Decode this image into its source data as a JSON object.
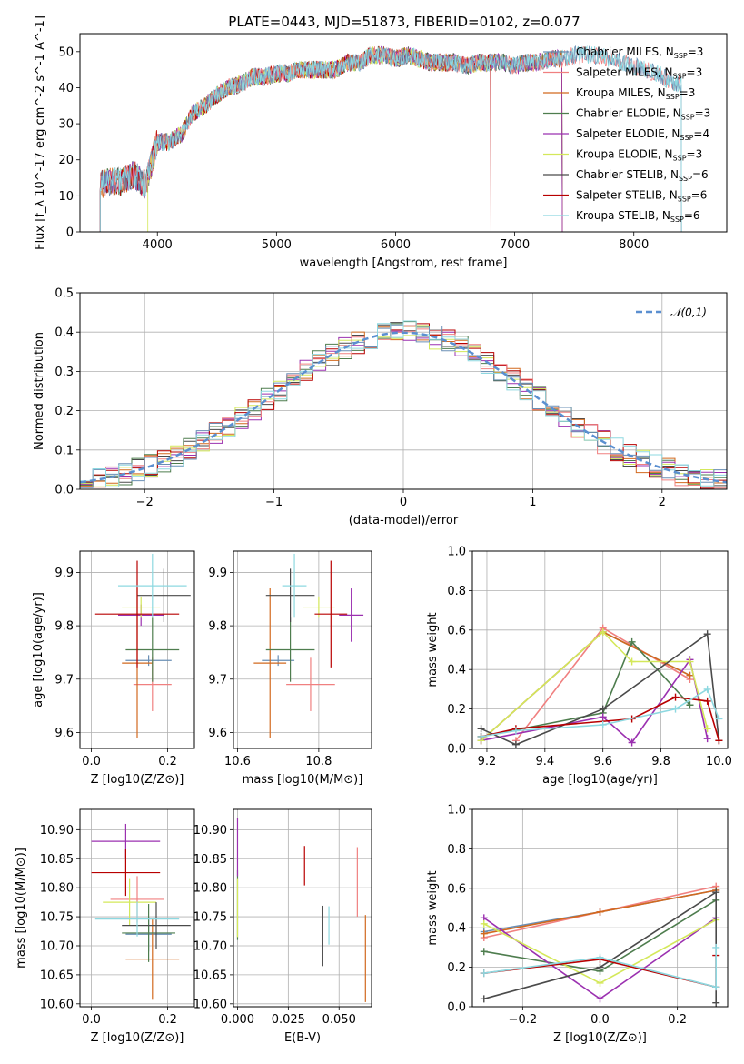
{
  "figure": {
    "title": "PLATE=0443, MJD=51873, FIBERID=0102, z=0.077",
    "background": "#ffffff"
  },
  "series_info": [
    {
      "name": "Chabrier MILES",
      "nssp": "3",
      "color": "#6a8fb5"
    },
    {
      "name": "Salpeter MILES",
      "nssp": "3",
      "color": "#f08080"
    },
    {
      "name": "Kroupa MILES",
      "nssp": "3",
      "color": "#d2691e"
    },
    {
      "name": "Chabrier ELODIE",
      "nssp": "3",
      "color": "#4e7d4e"
    },
    {
      "name": "Salpeter ELODIE",
      "nssp": "4",
      "color": "#9b30b0"
    },
    {
      "name": "Kroupa ELODIE",
      "nssp": "3",
      "color": "#d4e85a"
    },
    {
      "name": "Chabrier STELIB",
      "nssp": "6",
      "color": "#4a4a4a"
    },
    {
      "name": "Salpeter STELIB",
      "nssp": "6",
      "color": "#b80000"
    },
    {
      "name": "Kroupa STELIB",
      "nssp": "6",
      "color": "#8dd8e0"
    }
  ],
  "chart_data": [
    {
      "id": "spectrum",
      "type": "line",
      "xlabel": "wavelength [Angstrom, rest frame]",
      "ylabel": "Flux [f_λ 10^-17 erg cm^-2 s^-1 A^-1]",
      "xlim": [
        3350,
        8780
      ],
      "ylim": [
        0,
        55
      ],
      "xticks": [
        4000,
        5000,
        6000,
        7000,
        8000
      ],
      "yticks": [
        0,
        10,
        20,
        30,
        40,
        50
      ],
      "grid": false,
      "legend": "upper right",
      "data_x": [
        3520,
        3600,
        3700,
        3800,
        3900,
        4000,
        4100,
        4200,
        4300,
        4400,
        4500,
        4600,
        4700,
        4800,
        4900,
        5000,
        5100,
        5200,
        5300,
        5400,
        5500,
        5600,
        5700,
        5800,
        5900,
        6000,
        6100,
        6200,
        6300,
        6400,
        6500,
        6600,
        6700,
        6800,
        6900,
        7000,
        7100,
        7200,
        7300,
        7400,
        7500,
        7600,
        7700,
        7800,
        7900,
        8000,
        8100,
        8200,
        8300,
        8400
      ],
      "data_y": [
        13,
        14,
        14,
        16,
        13,
        25,
        25,
        27,
        33,
        35,
        38,
        40,
        41,
        43,
        43,
        44,
        44,
        45,
        45,
        45,
        45,
        47,
        47,
        49,
        49,
        48,
        49,
        48,
        47,
        47,
        47,
        46,
        47,
        47,
        47,
        46,
        47,
        47,
        48,
        48,
        49,
        49,
        49,
        48,
        47,
        46,
        45,
        44,
        42,
        41
      ],
      "model_ranges": [
        {
          "series": 0,
          "x": [
            3520,
            8400
          ]
        },
        {
          "series": 1,
          "x": [
            3520,
            8400
          ]
        },
        {
          "series": 2,
          "x": [
            3520,
            7400
          ]
        },
        {
          "series": 3,
          "x": [
            3520,
            7400
          ]
        },
        {
          "series": 4,
          "x": [
            3520,
            7400
          ]
        },
        {
          "series": 5,
          "x": [
            3920,
            6800
          ]
        },
        {
          "series": 6,
          "x": [
            3520,
            7400
          ]
        },
        {
          "series": 7,
          "x": [
            3520,
            6800
          ]
        },
        {
          "series": 8,
          "x": [
            3520,
            8400
          ]
        }
      ]
    },
    {
      "id": "residuals",
      "type": "line",
      "xlabel": "(data-model)/error",
      "ylabel": "Normed distribution",
      "xlim": [
        -2.5,
        2.5
      ],
      "ylim": [
        0,
        0.5
      ],
      "xticks": [
        -2,
        -1,
        0,
        1,
        2
      ],
      "yticks": [
        0.0,
        0.1,
        0.2,
        0.3,
        0.4,
        0.5
      ],
      "grid": true,
      "legend": "upper right",
      "reference_label": "𝒩(0,1)",
      "reference_color": "#5b8fd0",
      "bin_edges_start": -2.5,
      "bin_width": 0.1
    },
    {
      "id": "age-vs-Z",
      "type": "scatter",
      "xlabel": "Z [log10(Z/Z⊙)]",
      "ylabel": "age [log10(age/yr)]",
      "xlim": [
        -0.03,
        0.27
      ],
      "ylim": [
        9.57,
        9.94
      ],
      "xticks": [
        0.0,
        0.2
      ],
      "yticks": [
        9.6,
        9.7,
        9.8,
        9.9
      ],
      "grid": true,
      "points": [
        {
          "s": 0,
          "x": 0.15,
          "y": 9.735,
          "xe": 0.06,
          "ye": 0.01
        },
        {
          "s": 1,
          "x": 0.16,
          "y": 9.69,
          "xe": 0.05,
          "ye": 0.05
        },
        {
          "s": 2,
          "x": 0.12,
          "y": 9.73,
          "xe": 0.04,
          "ye": 0.14
        },
        {
          "s": 3,
          "x": 0.16,
          "y": 9.755,
          "xe": 0.07,
          "ye": 0.06
        },
        {
          "s": 4,
          "x": 0.13,
          "y": 9.82,
          "xe": 0.06,
          "ye": 0.02
        },
        {
          "s": 5,
          "x": 0.13,
          "y": 9.835,
          "xe": 0.05,
          "ye": 0.02
        },
        {
          "s": 6,
          "x": 0.19,
          "y": 9.857,
          "xe": 0.07,
          "ye": 0.05
        },
        {
          "s": 7,
          "x": 0.12,
          "y": 9.822,
          "xe": 0.11,
          "ye": 0.1
        },
        {
          "s": 8,
          "x": 0.16,
          "y": 9.875,
          "xe": 0.09,
          "ye": 0.06
        }
      ]
    },
    {
      "id": "age-vs-mass",
      "type": "scatter",
      "xlabel": "mass [log10(M/M⊙)]",
      "ylabel": "",
      "xlim": [
        10.59,
        10.93
      ],
      "ylim": [
        9.57,
        9.94
      ],
      "xticks": [
        10.6,
        10.8
      ],
      "yticks": [
        9.6,
        9.7,
        9.8,
        9.9
      ],
      "grid": true,
      "points": [
        {
          "s": 0,
          "x": 10.7,
          "y": 9.735,
          "xe": 0.04,
          "ye": 0.01
        },
        {
          "s": 1,
          "x": 10.78,
          "y": 9.69,
          "xe": 0.06,
          "ye": 0.05
        },
        {
          "s": 2,
          "x": 10.68,
          "y": 9.73,
          "xe": 0.04,
          "ye": 0.14
        },
        {
          "s": 3,
          "x": 10.73,
          "y": 9.755,
          "xe": 0.06,
          "ye": 0.06
        },
        {
          "s": 4,
          "x": 10.88,
          "y": 9.82,
          "xe": 0.03,
          "ye": 0.05
        },
        {
          "s": 5,
          "x": 10.8,
          "y": 9.835,
          "xe": 0.04,
          "ye": 0.02
        },
        {
          "s": 6,
          "x": 10.73,
          "y": 9.857,
          "xe": 0.06,
          "ye": 0.05
        },
        {
          "s": 7,
          "x": 10.83,
          "y": 9.822,
          "xe": 0.04,
          "ye": 0.1
        },
        {
          "s": 8,
          "x": 10.74,
          "y": 9.875,
          "xe": 0.03,
          "ye": 0.06
        }
      ]
    },
    {
      "id": "mass-weight-vs-age",
      "type": "line",
      "xlabel": "age [log10(age/yr)]",
      "ylabel": "mass weight",
      "xlim": [
        9.15,
        10.03
      ],
      "ylim": [
        0,
        1
      ],
      "xticks": [
        9.2,
        9.4,
        9.6,
        9.8,
        10.0
      ],
      "yticks": [
        0.0,
        0.2,
        0.4,
        0.6,
        0.8,
        1.0
      ],
      "grid": true,
      "lines": [
        {
          "s": 0,
          "x": [
            9.18,
            9.6,
            9.9
          ],
          "y": [
            0.04,
            0.59,
            0.37
          ]
        },
        {
          "s": 1,
          "x": [
            9.3,
            9.6,
            9.9
          ],
          "y": [
            0.04,
            0.61,
            0.35
          ]
        },
        {
          "s": 2,
          "x": [
            9.18,
            9.6,
            9.9
          ],
          "y": [
            0.04,
            0.59,
            0.37
          ]
        },
        {
          "s": 3,
          "x": [
            9.18,
            9.6,
            9.7,
            9.9
          ],
          "y": [
            0.06,
            0.18,
            0.54,
            0.22
          ]
        },
        {
          "s": 4,
          "x": [
            9.18,
            9.6,
            9.7,
            9.9,
            9.96
          ],
          "y": [
            0.04,
            0.16,
            0.03,
            0.45,
            0.05
          ]
        },
        {
          "s": 5,
          "x": [
            9.18,
            9.6,
            9.7,
            9.9,
            9.96
          ],
          "y": [
            0.04,
            0.59,
            0.44,
            0.44,
            0.1
          ]
        },
        {
          "s": 6,
          "x": [
            9.18,
            9.3,
            9.6,
            9.96,
            10.0
          ],
          "y": [
            0.1,
            0.02,
            0.2,
            0.58,
            0.04
          ]
        },
        {
          "s": 7,
          "x": [
            9.18,
            9.3,
            9.7,
            9.85,
            9.96,
            10.0
          ],
          "y": [
            0.06,
            0.1,
            0.15,
            0.26,
            0.24,
            0.04
          ]
        },
        {
          "s": 8,
          "x": [
            9.18,
            9.3,
            9.6,
            9.85,
            9.96,
            10.0
          ],
          "y": [
            0.06,
            0.09,
            0.12,
            0.2,
            0.3,
            0.15
          ]
        }
      ]
    },
    {
      "id": "mass-vs-Z",
      "type": "scatter",
      "xlabel": "Z [log10(Z/Z⊙)]",
      "ylabel": "mass [log10(M/M⊙)]",
      "xlim": [
        -0.03,
        0.27
      ],
      "ylim": [
        10.595,
        10.935
      ],
      "xticks": [
        0.0,
        0.2
      ],
      "yticks": [
        10.6,
        10.65,
        10.7,
        10.75,
        10.8,
        10.85,
        10.9
      ],
      "grid": true,
      "points": [
        {
          "s": 0,
          "x": 0.15,
          "y": 10.72,
          "xe": 0.06,
          "ye": 0.03
        },
        {
          "s": 1,
          "x": 0.12,
          "y": 10.78,
          "xe": 0.07,
          "ye": 0.04
        },
        {
          "s": 2,
          "x": 0.16,
          "y": 10.677,
          "xe": 0.07,
          "ye": 0.07
        },
        {
          "s": 3,
          "x": 0.15,
          "y": 10.722,
          "xe": 0.07,
          "ye": 0.05
        },
        {
          "s": 4,
          "x": 0.09,
          "y": 10.88,
          "xe": 0.09,
          "ye": 0.03
        },
        {
          "s": 5,
          "x": 0.1,
          "y": 10.775,
          "xe": 0.07,
          "ye": 0.04
        },
        {
          "s": 6,
          "x": 0.17,
          "y": 10.735,
          "xe": 0.09,
          "ye": 0.04
        },
        {
          "s": 7,
          "x": 0.09,
          "y": 10.826,
          "xe": 0.09,
          "ye": 0.04
        },
        {
          "s": 8,
          "x": 0.12,
          "y": 10.746,
          "xe": 0.11,
          "ye": 0.03
        }
      ]
    },
    {
      "id": "mass-vs-EBV",
      "type": "scatter",
      "xlabel": "E(B-V)",
      "ylabel": "",
      "xlim": [
        -0.002,
        0.066
      ],
      "ylim": [
        10.595,
        10.935
      ],
      "xticks": [
        0.0,
        0.025,
        0.05
      ],
      "yticks": [
        10.6,
        10.65,
        10.7,
        10.75,
        10.8,
        10.85,
        10.9
      ],
      "grid": true,
      "points": [
        {
          "s": 0,
          "x": 0.0,
          "y": 10.7,
          "xe": 0,
          "ye": 0.0
        },
        {
          "s": 1,
          "x": 0.059,
          "y": 10.81,
          "xe": 0,
          "ye": 0.06
        },
        {
          "s": 2,
          "x": 0.063,
          "y": 10.678,
          "xe": 0,
          "ye": 0.075
        },
        {
          "s": 3,
          "x": 0.0,
          "y": 10.77,
          "xe": 0,
          "ye": 0.06
        },
        {
          "s": 4,
          "x": 0.0,
          "y": 10.87,
          "xe": 0,
          "ye": 0.05
        },
        {
          "s": 5,
          "x": 0.0,
          "y": 10.765,
          "xe": 0,
          "ye": 0.05
        },
        {
          "s": 6,
          "x": 0.042,
          "y": 10.717,
          "xe": 0,
          "ye": 0.052
        },
        {
          "s": 7,
          "x": 0.033,
          "y": 10.838,
          "xe": 0,
          "ye": 0.034
        },
        {
          "s": 8,
          "x": 0.045,
          "y": 10.735,
          "xe": 0,
          "ye": 0.033
        }
      ]
    },
    {
      "id": "mass-weight-vs-Z",
      "type": "line",
      "xlabel": "Z [log10(Z/Z⊙)]",
      "ylabel": "mass weight",
      "xlim": [
        -0.33,
        0.33
      ],
      "ylim": [
        0,
        1
      ],
      "xticks": [
        -0.2,
        0.0,
        0.2
      ],
      "yticks": [
        0.0,
        0.2,
        0.4,
        0.6,
        0.8,
        1.0
      ],
      "grid": true,
      "lines": [
        {
          "s": 0,
          "x": [
            -0.3,
            0.0,
            0.3
          ],
          "y": [
            0.38,
            0.48,
            0.59
          ]
        },
        {
          "s": 1,
          "x": [
            -0.3,
            0.0,
            0.3
          ],
          "y": [
            0.35,
            0.48,
            0.61
          ]
        },
        {
          "s": 2,
          "x": [
            -0.3,
            0.0,
            0.3
          ],
          "y": [
            0.37,
            0.48,
            0.59
          ]
        },
        {
          "s": 3,
          "x": [
            -0.3,
            0.0,
            0.3
          ],
          "y": [
            0.28,
            0.18,
            0.54
          ]
        },
        {
          "s": 4,
          "x": [
            -0.3,
            0.0,
            0.3
          ],
          "y": [
            0.45,
            0.04,
            0.45
          ]
        },
        {
          "s": 5,
          "x": [
            -0.3,
            0.0,
            0.3
          ],
          "y": [
            0.42,
            0.12,
            0.44
          ]
        },
        {
          "s": 6,
          "x": [
            -0.3,
            0.0,
            0.3,
            0.3
          ],
          "y": [
            0.04,
            0.2,
            0.58,
            0.02
          ]
        },
        {
          "s": 7,
          "x": [
            -0.3,
            0.0,
            0.3,
            0.3
          ],
          "y": [
            0.17,
            0.24,
            0.1,
            0.26
          ]
        },
        {
          "s": 8,
          "x": [
            -0.3,
            0.0,
            0.3,
            0.3
          ],
          "y": [
            0.17,
            0.25,
            0.1,
            0.3
          ]
        }
      ]
    }
  ]
}
